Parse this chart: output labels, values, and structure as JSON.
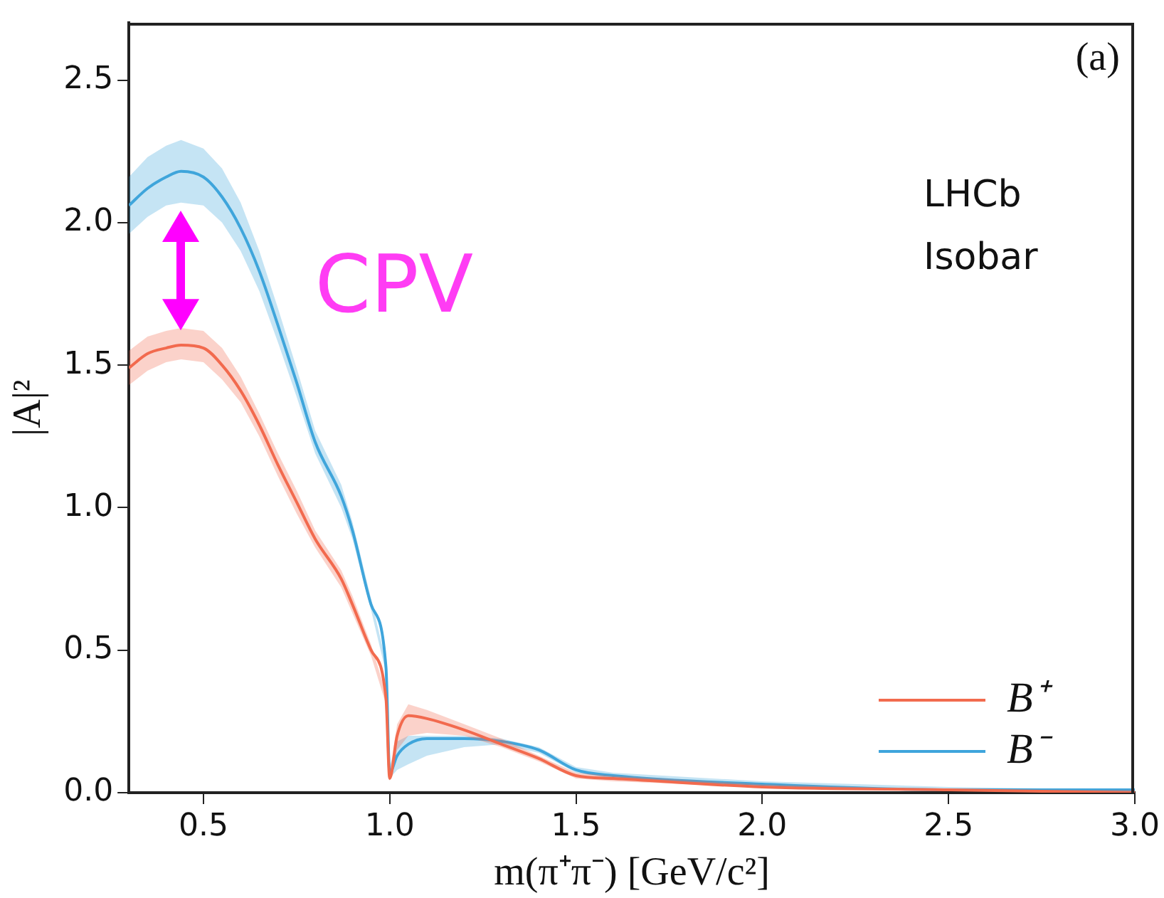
{
  "chart_data": {
    "type": "line",
    "xlabel": "m(π⁺π⁻) [GeV/c²]",
    "ylabel": "|A|²",
    "annotations": [
      "(a)",
      "LHCb",
      "Isobar",
      "CPV"
    ],
    "xlim": [
      0.3,
      3.0
    ],
    "xticks": [
      0.5,
      {
        "value": 1,
        "label": "1.0"
      },
      1.5,
      {
        "value": 2,
        "label": "2.0"
      },
      2.5,
      {
        "value": 3,
        "label": "3.0"
      }
    ],
    "ylim": [
      0,
      2.7
    ],
    "yticks": [
      {
        "value": 0,
        "label": "0.0"
      },
      0.5,
      {
        "value": 1,
        "label": "1.0"
      },
      1.5,
      {
        "value": 2,
        "label": "2.0"
      },
      2.5
    ],
    "grid": false,
    "legend": "bottom right",
    "marker": "none",
    "line_style": "solid",
    "series": [
      {
        "name": "B⁺",
        "color": "#f26b4e",
        "x": [
          0.3,
          0.35,
          0.4,
          0.44,
          0.5,
          0.55,
          0.6,
          0.65,
          0.7,
          0.75,
          0.8,
          0.87,
          0.9,
          0.95,
          0.99,
          1.0,
          1.02,
          1.05,
          1.1,
          1.2,
          1.3,
          1.4,
          1.5,
          1.6,
          2.0,
          2.5,
          3.0
        ],
        "values": [
          1.49,
          1.54,
          1.56,
          1.57,
          1.56,
          1.5,
          1.41,
          1.29,
          1.15,
          1.02,
          0.89,
          0.75,
          0.66,
          0.5,
          0.33,
          0.05,
          0.2,
          0.27,
          0.26,
          0.22,
          0.17,
          0.12,
          0.06,
          0.05,
          0.02,
          0.01,
          0.0
        ],
        "lower": [
          1.43,
          1.48,
          1.51,
          1.52,
          1.51,
          1.45,
          1.37,
          1.25,
          1.11,
          0.98,
          0.86,
          0.72,
          0.63,
          0.48,
          0.31,
          0.04,
          0.15,
          0.2,
          0.21,
          0.2,
          0.16,
          0.11,
          0.05,
          0.04,
          0.02,
          0.01,
          0.0
        ],
        "upper": [
          1.55,
          1.6,
          1.62,
          1.63,
          1.62,
          1.56,
          1.46,
          1.33,
          1.19,
          1.06,
          0.92,
          0.78,
          0.69,
          0.52,
          0.35,
          0.07,
          0.24,
          0.31,
          0.29,
          0.24,
          0.19,
          0.13,
          0.07,
          0.06,
          0.03,
          0.01,
          0.01
        ]
      },
      {
        "name": "B⁻",
        "color": "#3fa5dc",
        "x": [
          0.3,
          0.35,
          0.4,
          0.44,
          0.5,
          0.55,
          0.6,
          0.65,
          0.7,
          0.75,
          0.8,
          0.87,
          0.9,
          0.95,
          0.99,
          1.0,
          1.02,
          1.05,
          1.1,
          1.2,
          1.3,
          1.4,
          1.5,
          1.6,
          2.0,
          2.5,
          3.0
        ],
        "values": [
          2.06,
          2.12,
          2.16,
          2.18,
          2.16,
          2.09,
          1.98,
          1.83,
          1.64,
          1.44,
          1.23,
          1.04,
          0.92,
          0.66,
          0.44,
          0.07,
          0.13,
          0.17,
          0.19,
          0.19,
          0.18,
          0.15,
          0.08,
          0.06,
          0.03,
          0.01,
          0.01
        ],
        "lower": [
          1.96,
          2.02,
          2.06,
          2.07,
          2.06,
          2.0,
          1.9,
          1.76,
          1.58,
          1.39,
          1.19,
          1.0,
          0.89,
          0.64,
          0.42,
          0.05,
          0.08,
          0.1,
          0.13,
          0.16,
          0.17,
          0.14,
          0.07,
          0.05,
          0.02,
          0.01,
          0.0
        ],
        "upper": [
          2.16,
          2.23,
          2.27,
          2.29,
          2.26,
          2.19,
          2.07,
          1.9,
          1.7,
          1.49,
          1.27,
          1.08,
          0.95,
          0.68,
          0.46,
          0.09,
          0.18,
          0.2,
          0.2,
          0.2,
          0.19,
          0.16,
          0.09,
          0.07,
          0.04,
          0.02,
          0.01
        ]
      }
    ]
  }
}
